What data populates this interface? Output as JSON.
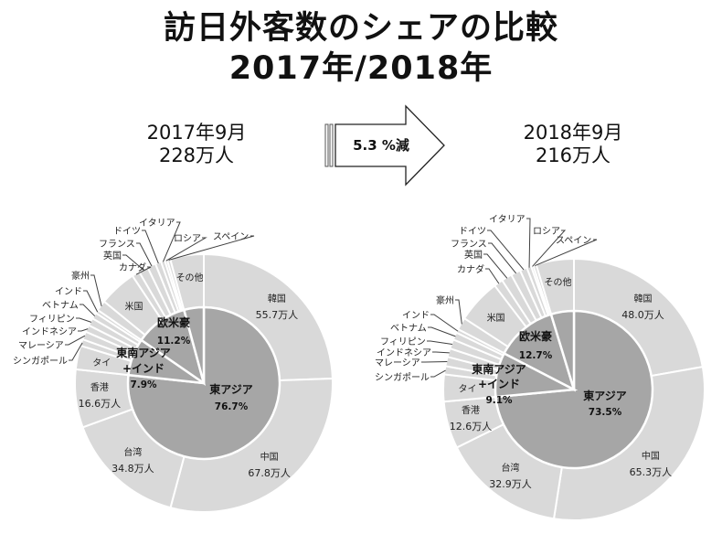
{
  "header": {
    "title_line1": "訪日外客数のシェアの比較",
    "title_line2": "2017年/2018年"
  },
  "comparison": {
    "left_period": "2017年9月",
    "left_total": "228万人",
    "change_label": "5.3 %減",
    "right_period": "2018年9月",
    "right_total": "216万人"
  },
  "colors": {
    "inner_ring": "#a6a6a6",
    "outer_ring": "#d9d9d9",
    "separator": "#ffffff",
    "leader_line": "#404040"
  },
  "chart_data": [
    {
      "type": "pie",
      "title": "2017年9月",
      "subtitle": "228万人",
      "unit": "万人",
      "inner": [
        {
          "name": "東アジア",
          "value": 76.7,
          "label": "76.7%"
        },
        {
          "name": "東南アジア\n+インド",
          "value": 7.9,
          "label": "7.9%"
        },
        {
          "name": "欧米豪",
          "value": 11.2,
          "label": "11.2%"
        },
        {
          "name": "その他",
          "value": 4.2,
          "label": ""
        }
      ],
      "outer": [
        {
          "name": "韓国",
          "value": 55.7,
          "label": "55.7万人",
          "group": "東アジア"
        },
        {
          "name": "中国",
          "value": 67.8,
          "label": "67.8万人",
          "group": "東アジア"
        },
        {
          "name": "台湾",
          "value": 34.8,
          "label": "34.8万人",
          "group": "東アジア"
        },
        {
          "name": "香港",
          "value": 16.6,
          "label": "16.6万人",
          "group": "東アジア"
        },
        {
          "name": "タイ",
          "value": 6.8,
          "label": "",
          "group": "東南アジア+インド"
        },
        {
          "name": "シンガポール",
          "value": 1.9,
          "label": "",
          "group": "東南アジア+インド"
        },
        {
          "name": "マレーシア",
          "value": 2.3,
          "label": "",
          "group": "東南アジア+インド"
        },
        {
          "name": "インドネシア",
          "value": 2.0,
          "label": "",
          "group": "東南アジア+インド"
        },
        {
          "name": "フィリピン",
          "value": 2.2,
          "label": "",
          "group": "東南アジア+インド"
        },
        {
          "name": "ベトナム",
          "value": 1.8,
          "label": "",
          "group": "東南アジア+インド"
        },
        {
          "name": "インド",
          "value": 1.0,
          "label": "",
          "group": "東南アジア+インド"
        },
        {
          "name": "豪州",
          "value": 3.0,
          "label": "",
          "group": "欧米豪"
        },
        {
          "name": "米国",
          "value": 10.8,
          "label": "",
          "group": "欧米豪"
        },
        {
          "name": "カナダ",
          "value": 2.2,
          "label": "",
          "group": "欧米豪"
        },
        {
          "name": "英国",
          "value": 2.7,
          "label": "",
          "group": "欧米豪"
        },
        {
          "name": "フランス",
          "value": 2.4,
          "label": "",
          "group": "欧米豪"
        },
        {
          "name": "ドイツ",
          "value": 1.7,
          "label": "",
          "group": "欧米豪"
        },
        {
          "name": "イタリア",
          "value": 1.1,
          "label": "",
          "group": "欧米豪"
        },
        {
          "name": "ロシア",
          "value": 0.7,
          "label": "",
          "group": "欧米豪"
        },
        {
          "name": "スペイン",
          "value": 0.9,
          "label": "",
          "group": "欧米豪"
        },
        {
          "name": "その他",
          "value": 9.6,
          "label": "",
          "group": "その他"
        }
      ]
    },
    {
      "type": "pie",
      "title": "2018年9月",
      "subtitle": "216万人",
      "unit": "万人",
      "inner": [
        {
          "name": "東アジア",
          "value": 73.5,
          "label": "73.5%"
        },
        {
          "name": "東南アジア\n+インド",
          "value": 9.1,
          "label": "9.1%"
        },
        {
          "name": "欧米豪",
          "value": 12.7,
          "label": "12.7%"
        },
        {
          "name": "その他",
          "value": 4.7,
          "label": ""
        }
      ],
      "outer": [
        {
          "name": "韓国",
          "value": 48.0,
          "label": "48.0万人",
          "group": "東アジア"
        },
        {
          "name": "中国",
          "value": 65.3,
          "label": "65.3万人",
          "group": "東アジア"
        },
        {
          "name": "台湾",
          "value": 32.9,
          "label": "32.9万人",
          "group": "東アジア"
        },
        {
          "name": "香港",
          "value": 12.6,
          "label": "12.6万人",
          "group": "東アジア"
        },
        {
          "name": "タイ",
          "value": 7.2,
          "label": "",
          "group": "東南アジア+インド"
        },
        {
          "name": "シンガポール",
          "value": 2.2,
          "label": "",
          "group": "東南アジア+インド"
        },
        {
          "name": "マレーシア",
          "value": 2.5,
          "label": "",
          "group": "東南アジア+インド"
        },
        {
          "name": "インドネシア",
          "value": 2.3,
          "label": "",
          "group": "東南アジア+インド"
        },
        {
          "name": "フィリピン",
          "value": 2.5,
          "label": "",
          "group": "東南アジア+インド"
        },
        {
          "name": "ベトナム",
          "value": 2.0,
          "label": "",
          "group": "東南アジア+インド"
        },
        {
          "name": "インド",
          "value": 1.0,
          "label": "",
          "group": "東南アジア+インド"
        },
        {
          "name": "豪州",
          "value": 3.3,
          "label": "",
          "group": "欧米豪"
        },
        {
          "name": "米国",
          "value": 11.8,
          "label": "",
          "group": "欧米豪"
        },
        {
          "name": "カナダ",
          "value": 2.4,
          "label": "",
          "group": "欧米豪"
        },
        {
          "name": "英国",
          "value": 2.8,
          "label": "",
          "group": "欧米豪"
        },
        {
          "name": "フランス",
          "value": 2.6,
          "label": "",
          "group": "欧米豪"
        },
        {
          "name": "ドイツ",
          "value": 1.9,
          "label": "",
          "group": "欧米豪"
        },
        {
          "name": "イタリア",
          "value": 1.2,
          "label": "",
          "group": "欧米豪"
        },
        {
          "name": "ロシア",
          "value": 0.6,
          "label": "",
          "group": "欧米豪"
        },
        {
          "name": "スペイン",
          "value": 0.8,
          "label": "",
          "group": "欧米豪"
        },
        {
          "name": "その他",
          "value": 10.1,
          "label": "",
          "group": "その他"
        }
      ]
    }
  ]
}
